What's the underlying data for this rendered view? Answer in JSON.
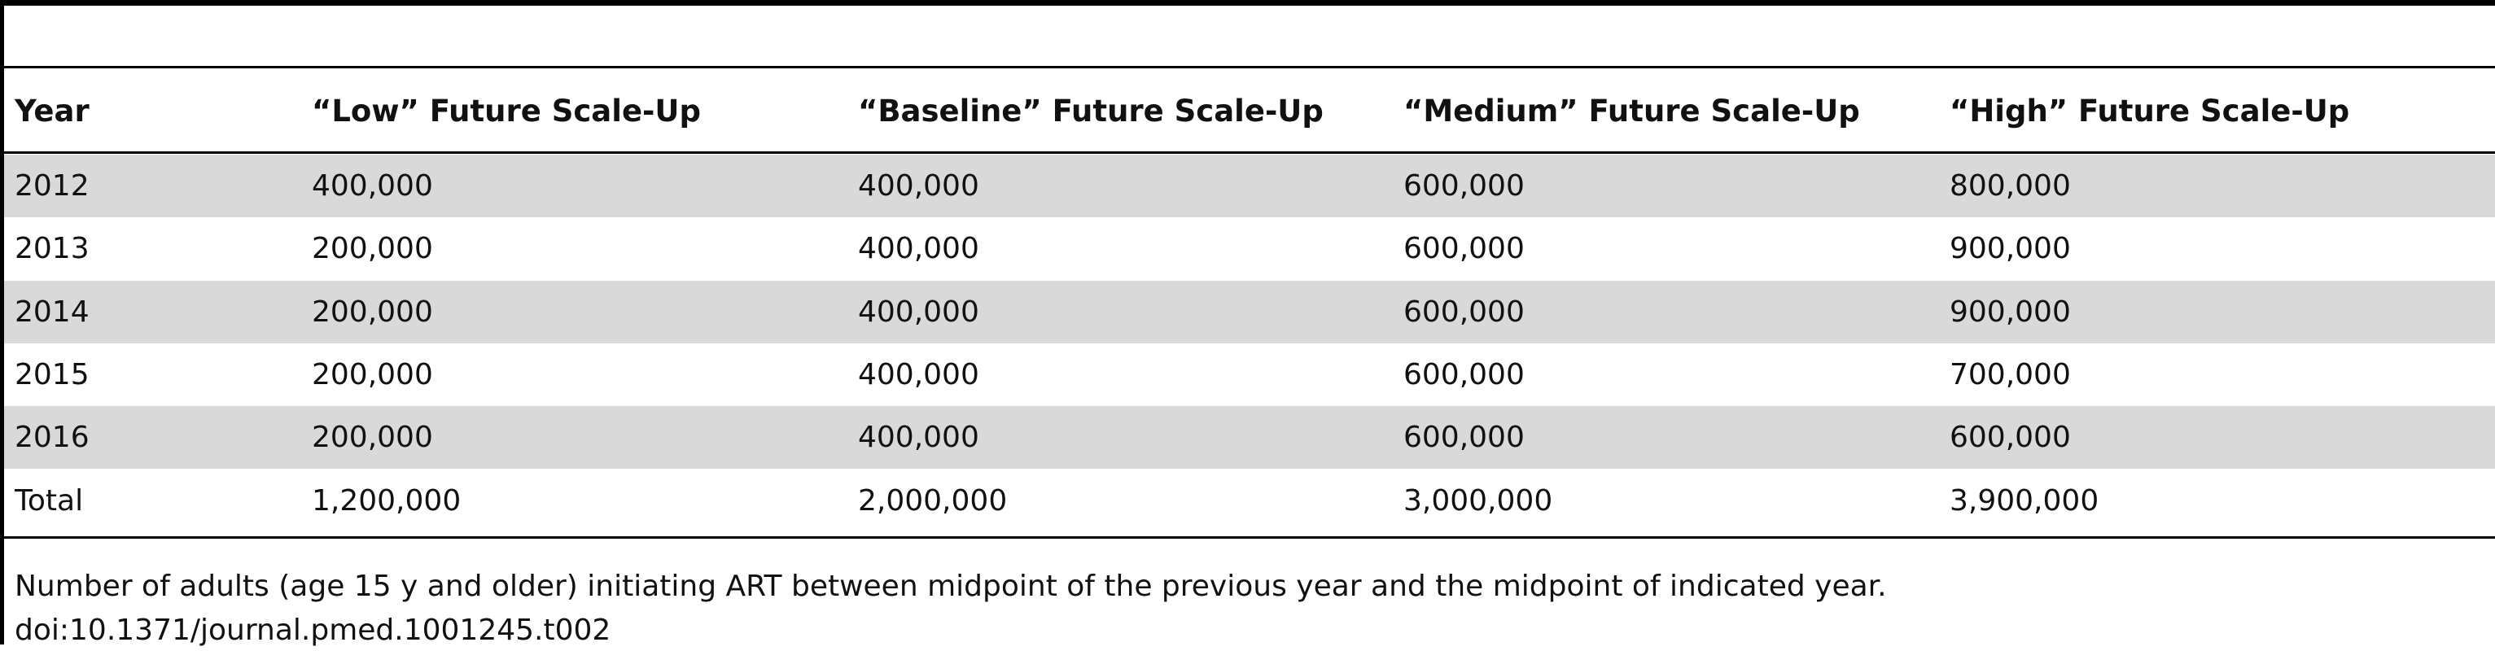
{
  "table": {
    "columns": [
      "Year",
      "“Low” Future Scale-Up",
      "“Baseline” Future Scale-Up",
      "“Medium” Future Scale-Up",
      "“High” Future Scale-Up"
    ],
    "rows": [
      [
        "2012",
        "400,000",
        "400,000",
        "600,000",
        "800,000"
      ],
      [
        "2013",
        "200,000",
        "400,000",
        "600,000",
        "900,000"
      ],
      [
        "2014",
        "200,000",
        "400,000",
        "600,000",
        "900,000"
      ],
      [
        "2015",
        "200,000",
        "400,000",
        "600,000",
        "700,000"
      ],
      [
        "2016",
        "200,000",
        "400,000",
        "600,000",
        "600,000"
      ],
      [
        "Total",
        "1,200,000",
        "2,000,000",
        "3,000,000",
        "3,900,000"
      ]
    ]
  },
  "footnote": "Number of adults (age 15 y and older) initiating ART between midpoint of the previous year and the midpoint of indicated year.",
  "doi": "doi:10.1371/journal.pmed.1001245.t002"
}
